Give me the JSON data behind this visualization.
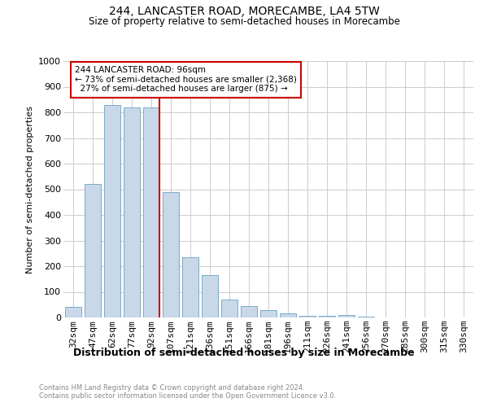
{
  "title1": "244, LANCASTER ROAD, MORECAMBE, LA4 5TW",
  "title2": "Size of property relative to semi-detached houses in Morecambe",
  "xlabel": "Distribution of semi-detached houses by size in Morecambe",
  "ylabel": "Number of semi-detached properties",
  "footnote1": "Contains HM Land Registry data © Crown copyright and database right 2024.",
  "footnote2": "Contains public sector information licensed under the Open Government Licence v3.0.",
  "categories": [
    "32sqm",
    "47sqm",
    "62sqm",
    "77sqm",
    "92sqm",
    "107sqm",
    "121sqm",
    "136sqm",
    "151sqm",
    "166sqm",
    "181sqm",
    "196sqm",
    "211sqm",
    "226sqm",
    "241sqm",
    "256sqm",
    "270sqm",
    "285sqm",
    "300sqm",
    "315sqm",
    "330sqm"
  ],
  "values": [
    40,
    520,
    830,
    820,
    820,
    490,
    235,
    165,
    70,
    45,
    30,
    15,
    5,
    5,
    8,
    3,
    0,
    0,
    0,
    0,
    0
  ],
  "bar_color": "#c8d8e8",
  "bar_edge_color": "#7aaac8",
  "property_bin_index": 4,
  "property_label": "244 LANCASTER ROAD: 96sqm",
  "pct_smaller": 73,
  "pct_larger": 27,
  "count_smaller": 2368,
  "count_larger": 875,
  "redline_color": "#cc0000",
  "annotation_edge_color": "#cc0000",
  "ylim_max": 1000,
  "yticks": [
    0,
    100,
    200,
    300,
    400,
    500,
    600,
    700,
    800,
    900,
    1000
  ],
  "bg_color": "#ffffff",
  "grid_color": "#cccccc",
  "title1_fontsize": 10,
  "title2_fontsize": 8.5,
  "ylabel_fontsize": 8,
  "xlabel_fontsize": 9,
  "tick_fontsize": 8,
  "annot_fontsize": 7.5,
  "footnote_fontsize": 6,
  "footnote_color": "#888888"
}
